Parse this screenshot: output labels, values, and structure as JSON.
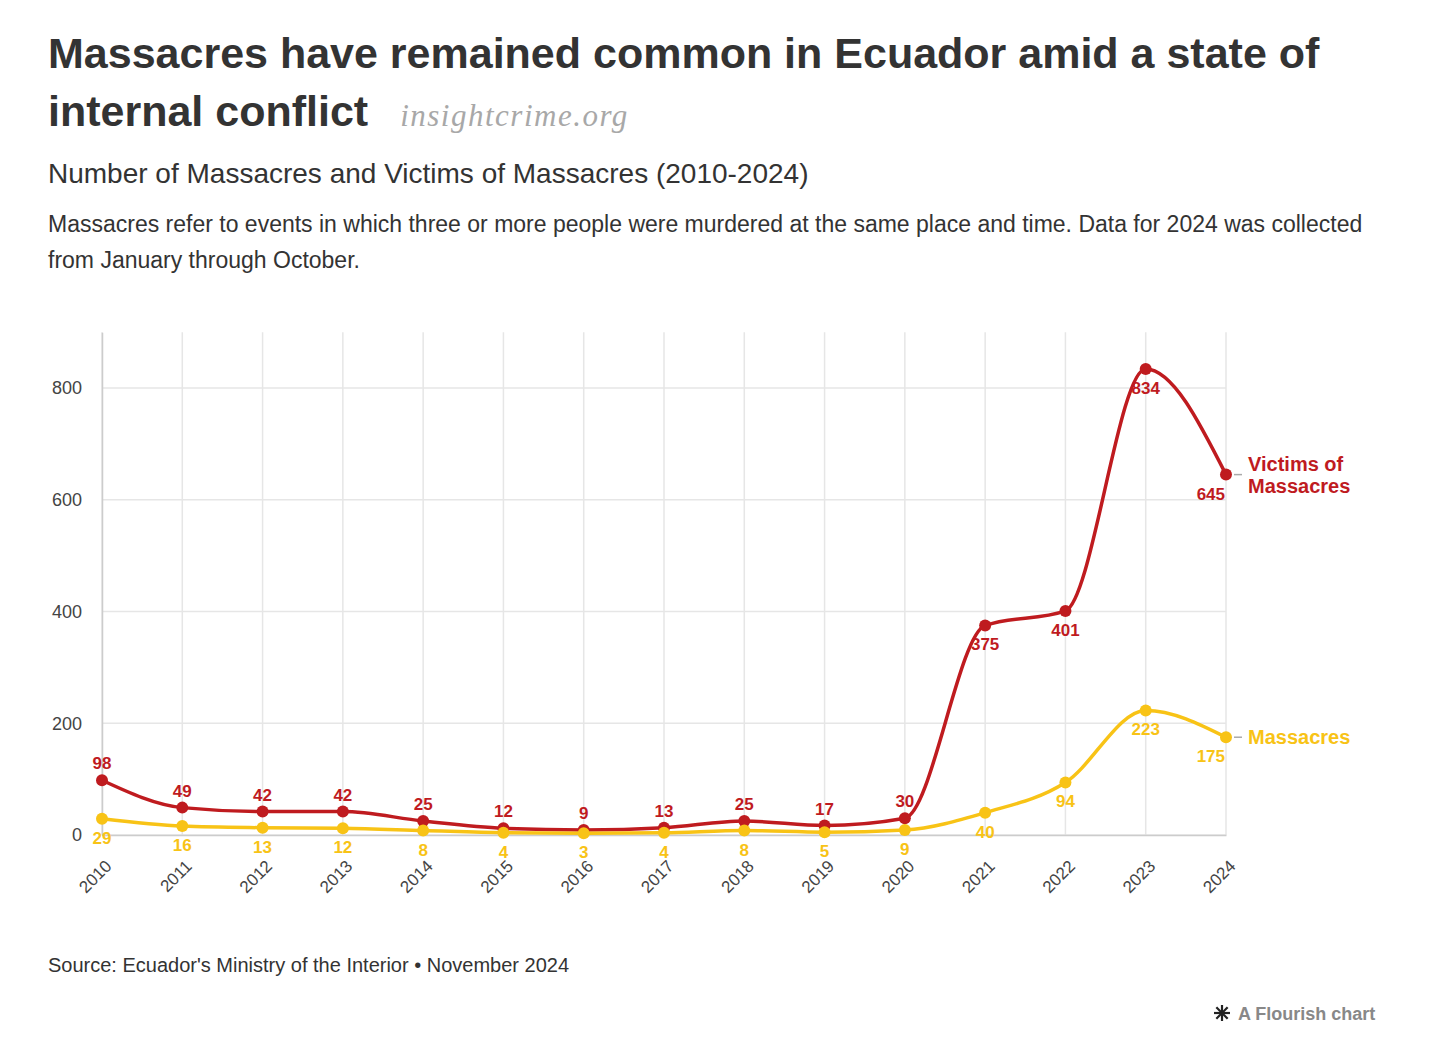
{
  "chart_data": {
    "type": "line",
    "title": "Massacres have remained common in Ecuador amid a state of internal conflict",
    "watermark": "insightcrime.org",
    "subtitle": "Number of Massacres and Victims of Massacres (2010-2024)",
    "note": "Massacres refer to events in which three or more people were murdered at the same place and time. Data for 2024 was collected from January through October.",
    "source": "Source: Ecuador's Ministry of the Interior • November 2024",
    "credit": "A Flourish chart",
    "x": [
      2010,
      2011,
      2012,
      2013,
      2014,
      2015,
      2016,
      2017,
      2018,
      2019,
      2020,
      2021,
      2022,
      2023,
      2024
    ],
    "xlim": [
      2010,
      2024
    ],
    "xticks": [
      2010,
      2011,
      2012,
      2013,
      2014,
      2015,
      2016,
      2017,
      2018,
      2019,
      2020,
      2021,
      2022,
      2023,
      2024
    ],
    "ylim": [
      0,
      900
    ],
    "yticks": [
      0,
      200,
      400,
      600,
      800
    ],
    "grid": true,
    "data_labels": true,
    "series": [
      {
        "name": "Victims of Massacres",
        "color": "#bf1b1f",
        "marker": "circle",
        "values": [
          98,
          49,
          42,
          42,
          25,
          12,
          9,
          13,
          25,
          17,
          30,
          375,
          401,
          834,
          645
        ]
      },
      {
        "name": "Massacres",
        "color": "#f8c316",
        "marker": "circle",
        "values": [
          29,
          16,
          13,
          12,
          8,
          4,
          3,
          4,
          8,
          5,
          9,
          40,
          94,
          223,
          175
        ]
      }
    ]
  }
}
